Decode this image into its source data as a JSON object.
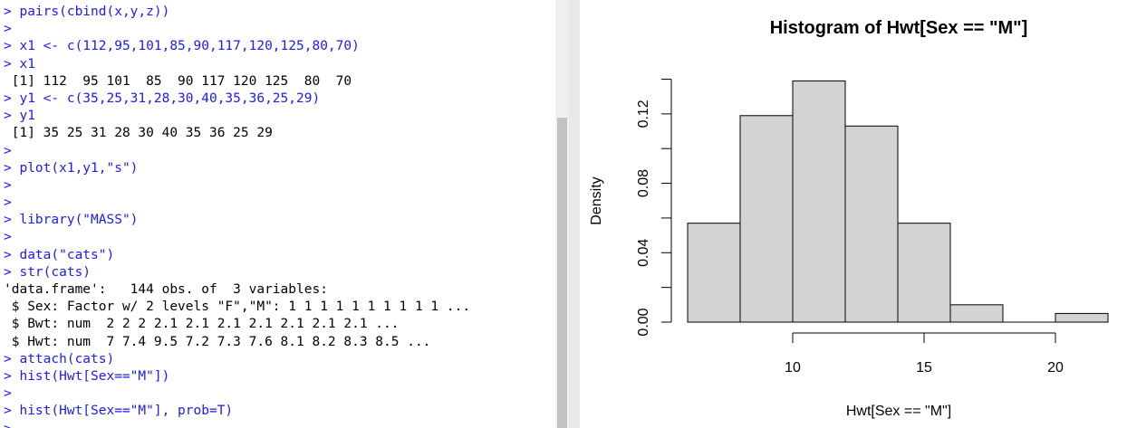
{
  "console": {
    "lines": [
      {
        "text": "> pairs(cbind(x,y,z))",
        "kind": "input"
      },
      {
        "text": ">",
        "kind": "input"
      },
      {
        "text": "> x1 <- c(112,95,101,85,90,117,120,125,80,70)",
        "kind": "input"
      },
      {
        "text": "> x1",
        "kind": "input"
      },
      {
        "text": " [1] 112  95 101  85  90 117 120 125  80  70",
        "kind": "output"
      },
      {
        "text": "> y1 <- c(35,25,31,28,30,40,35,36,25,29)",
        "kind": "input"
      },
      {
        "text": "> y1",
        "kind": "input"
      },
      {
        "text": " [1] 35 25 31 28 30 40 35 36 25 29",
        "kind": "output"
      },
      {
        "text": ">",
        "kind": "input"
      },
      {
        "text": "> plot(x1,y1,\"s\")",
        "kind": "input"
      },
      {
        "text": ">",
        "kind": "input"
      },
      {
        "text": ">",
        "kind": "input"
      },
      {
        "text": "> library(\"MASS\")",
        "kind": "input"
      },
      {
        "text": ">",
        "kind": "input"
      },
      {
        "text": "> data(\"cats\")",
        "kind": "input"
      },
      {
        "text": "> str(cats)",
        "kind": "input"
      },
      {
        "text": "'data.frame':   144 obs. of  3 variables:",
        "kind": "output"
      },
      {
        "text": " $ Sex: Factor w/ 2 levels \"F\",\"M\": 1 1 1 1 1 1 1 1 1 1 ...",
        "kind": "output"
      },
      {
        "text": " $ Bwt: num  2 2 2 2.1 2.1 2.1 2.1 2.1 2.1 2.1 ...",
        "kind": "output"
      },
      {
        "text": " $ Hwt: num  7 7.4 9.5 7.2 7.3 7.6 8.1 8.2 8.3 8.5 ...",
        "kind": "output"
      },
      {
        "text": "> attach(cats)",
        "kind": "input"
      },
      {
        "text": "> hist(Hwt[Sex==\"M\"])",
        "kind": "input"
      },
      {
        "text": ">",
        "kind": "input"
      },
      {
        "text": "> hist(Hwt[Sex==\"M\"], prob=T)",
        "kind": "input"
      },
      {
        "text": ">",
        "kind": "input"
      }
    ]
  },
  "chart_data": {
    "type": "histogram",
    "title": "Histogram of Hwt[Sex == \"M\"]",
    "x_label": "Hwt[Sex == \"M\"]",
    "y_label": "Density",
    "bins": [
      6,
      8,
      10,
      12,
      14,
      16,
      18,
      20,
      22
    ],
    "values": [
      0.057,
      0.119,
      0.139,
      0.113,
      0.057,
      0.01,
      0,
      0.005
    ],
    "color": "#d3d3d3",
    "xlim": [
      6,
      22
    ],
    "xticks": [
      10,
      15,
      20
    ],
    "ylim": [
      0,
      0.14
    ],
    "yticks": [
      {
        "value": 0,
        "label": "0.00"
      },
      {
        "value": 0.02,
        "label": null
      },
      0.04,
      {
        "value": 0.06,
        "label": null
      },
      0.08,
      {
        "value": 0.1,
        "label": null
      },
      0.12,
      {
        "value": 0.14,
        "label": null
      }
    ]
  }
}
